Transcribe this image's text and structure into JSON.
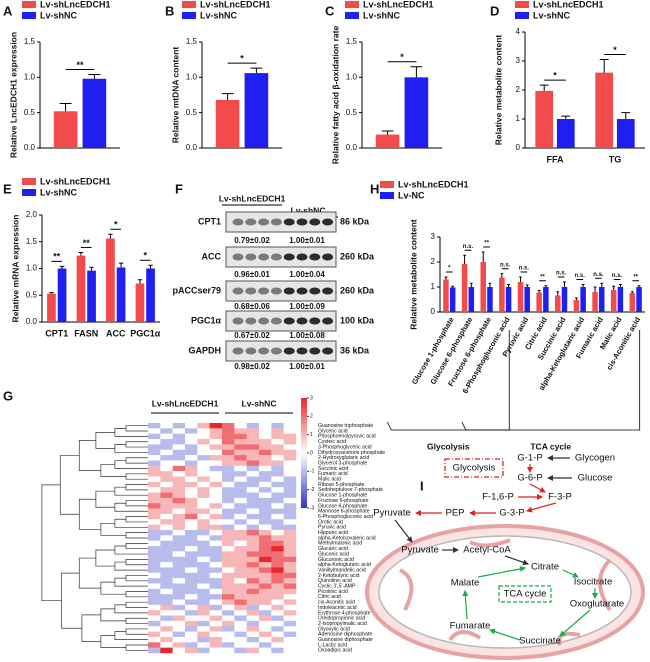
{
  "chart_data": [
    {
      "type": "bar",
      "panel": "A",
      "ylabel": "Relative LncEDCH1 expression",
      "series": [
        {
          "name": "Lv-shLncEDCH1",
          "color": "#f24b4b",
          "values": [
            0.52
          ],
          "errors": [
            0.11
          ]
        },
        {
          "name": "Lv-shNC",
          "color": "#1f1ff0",
          "values": [
            0.98
          ],
          "errors": [
            0.06
          ]
        }
      ],
      "annotations": [
        "**"
      ],
      "ylim": [
        0,
        1.5
      ],
      "yticks": [
        {
          "value": 0,
          "label": "0.0"
        },
        0.5,
        {
          "value": 1,
          "label": "1.0"
        },
        1.5
      ]
    },
    {
      "type": "bar",
      "panel": "B",
      "ylabel": "Relative mtDNA content",
      "series": [
        {
          "name": "Lv-shLncEDCH1",
          "color": "#f24b4b",
          "values": [
            0.68
          ],
          "errors": [
            0.09
          ]
        },
        {
          "name": "Lv-shNC",
          "color": "#1f1ff0",
          "values": [
            1.06
          ],
          "errors": [
            0.07
          ]
        }
      ],
      "annotations": [
        "*"
      ],
      "ylim": [
        0,
        1.5
      ],
      "yticks": [
        {
          "value": 0,
          "label": "0.0"
        },
        0.5,
        {
          "value": 1,
          "label": "1.0"
        },
        1.5
      ]
    },
    {
      "type": "bar",
      "panel": "C",
      "ylabel": "Relative fatty acid β-oxidation rate",
      "series": [
        {
          "name": "Lv-shLncEDCH1",
          "color": "#f24b4b",
          "values": [
            0.19
          ],
          "errors": [
            0.05
          ]
        },
        {
          "name": "Lv-shNC",
          "color": "#1f1ff0",
          "values": [
            1.0
          ],
          "errors": [
            0.15
          ]
        }
      ],
      "annotations": [
        "*"
      ],
      "ylim": [
        0,
        1.5
      ],
      "yticks": [
        {
          "value": 0,
          "label": "0.0"
        },
        0.5,
        {
          "value": 1,
          "label": "1.0"
        },
        1.5
      ]
    },
    {
      "type": "bar",
      "panel": "D",
      "ylabel": "Relative metabolite content",
      "categories": [
        "FFA",
        "TG"
      ],
      "series": [
        {
          "name": "Lv-shLncEDCH1",
          "color": "#f24b4b",
          "values": [
            1.97,
            2.6
          ],
          "errors": [
            0.2,
            0.45
          ]
        },
        {
          "name": "Lv-shNC",
          "color": "#1f1ff0",
          "values": [
            1.0,
            1.0
          ],
          "errors": [
            0.1,
            0.22
          ]
        }
      ],
      "annotations": [
        "*",
        "*"
      ],
      "ylim": [
        0,
        4
      ],
      "yticks": [
        0,
        1,
        2,
        3,
        4
      ]
    },
    {
      "type": "bar",
      "panel": "E",
      "ylabel": "Relative mRNA expression",
      "categories": [
        "CPT1",
        "FASN",
        "ACC",
        "PGC1α"
      ],
      "series": [
        {
          "name": "Lv-shLncEDCH1",
          "color": "#f24b4b",
          "values": [
            0.53,
            1.24,
            1.56,
            0.72
          ],
          "errors": [
            0.02,
            0.06,
            0.08,
            0.07
          ]
        },
        {
          "name": "Lv-shNC",
          "color": "#1f1ff0",
          "values": [
            1.0,
            0.96,
            1.02,
            1.0
          ],
          "errors": [
            0.04,
            0.06,
            0.08,
            0.06
          ]
        }
      ],
      "annotations": [
        "**",
        "**",
        "*",
        "*"
      ],
      "ylim": [
        0,
        2
      ],
      "yticks": [
        {
          "value": 0,
          "label": "0.0"
        },
        0.5,
        {
          "value": 1,
          "label": "1.0"
        },
        1.5,
        {
          "value": 2,
          "label": "2.0"
        }
      ]
    },
    {
      "type": "bar",
      "panel": "H",
      "ylabel": "Relative metabolite content",
      "categories": [
        "Glucose 1-phosphate",
        "Glucose 6-phosphate",
        "Fructose 6-phosphate",
        "6-Phosphogluconic acid",
        "Pyruvic acid",
        "Citric acid",
        "Succinic acid",
        "alpha-Ketoglutaric acid",
        "Fumaric acid",
        "Malic acid",
        "cis-Aconitic acid"
      ],
      "series": [
        {
          "name": "Lv-shLncEDCH1",
          "color": "#f24b4b",
          "values": [
            1.3,
            1.92,
            2.0,
            1.38,
            1.2,
            0.78,
            0.66,
            0.48,
            0.8,
            0.88,
            0.76
          ],
          "errors": [
            0.1,
            0.35,
            0.4,
            0.15,
            0.2,
            0.08,
            0.15,
            0.08,
            0.2,
            0.15,
            0.05
          ]
        },
        {
          "name": "Lv-NC",
          "color": "#1f1ff0",
          "values": [
            0.98,
            1.0,
            1.0,
            1.0,
            1.0,
            1.0,
            1.0,
            1.0,
            1.0,
            1.0,
            1.0
          ],
          "errors": [
            0.05,
            0.15,
            0.15,
            0.1,
            0.08,
            0.05,
            0.2,
            0.1,
            0.15,
            0.1,
            0.05
          ]
        }
      ],
      "annotations": [
        "*",
        "n.s.",
        "**",
        "n.s.",
        "n.s.",
        "**",
        "n.s.",
        "n.s.",
        "n.s.",
        "n.s.",
        "**"
      ],
      "groups": [
        {
          "label": "Glycolysis",
          "color": "#e02020"
        },
        {
          "label": "TCA cycle",
          "color": "#1aa84a"
        }
      ],
      "ylim": [
        0,
        3
      ],
      "yticks": [
        0,
        1,
        2,
        3
      ]
    }
  ],
  "blot": {
    "panel": "F",
    "lanes": [
      "Lv-shLncEDCH1",
      "Lv-shNC"
    ],
    "rows": [
      {
        "protein": "CPT1",
        "size": "86 kDa",
        "quant": [
          "0.79±0.02",
          "1.00±0.01"
        ]
      },
      {
        "protein": "ACC",
        "size": "260 kDa",
        "quant": [
          "0.96±0.01",
          "1.00±0.04"
        ]
      },
      {
        "protein": "pACCser79",
        "size": "260 kDa",
        "quant": [
          "0.68±0.06",
          "1.00±0.09"
        ]
      },
      {
        "protein": "PGC1α",
        "size": "100 kDa",
        "quant": [
          "0.67±0.02",
          "1.00±0.08"
        ]
      },
      {
        "protein": "GAPDH",
        "size": "36 kDa",
        "quant": [
          "0.98±0.02",
          "1.00±0.01"
        ]
      }
    ]
  },
  "heatmap": {
    "panel": "G",
    "groups": [
      "Lv-shLncEDCH1",
      "Lv-shNC"
    ],
    "clim": [
      -3,
      3
    ],
    "colorbar_ticks": [
      3,
      2,
      1,
      0,
      -1,
      -2,
      -3
    ],
    "rows": [
      "Guanosine triphosphate",
      "Glyceric acid",
      "Phosphoenolpyruvic acid",
      "Cysteic acid",
      "3-Phosphoglyceric acid",
      "Dihydroxyacetone phosphate",
      "2-Hydroxyglutaric acid",
      "Glycerol 3-phosphate",
      "Succinic acid",
      "Fumaric acid",
      "Malic acid",
      "Ribose 5-phosphate",
      "Sedoheptulose 7-phosphate",
      "Glucose 1-phosphate",
      "Fructose 6-phosphate",
      "Glucose 6-phosphate",
      "Mannose 6-phosphate",
      "6-Phosphogluconic acid",
      "Orotic acid",
      "Pyruvic acid",
      "Hippuric acid",
      "alpha-Ketoisovaleric acid",
      "Methylmalonic acid",
      "Glucaric acid",
      "Gluconic acid",
      "Glucuronic acid",
      "alpha-Ketoglutaric acid",
      "Vanillylmandelic acid",
      "2-Ketobutyric acid",
      "Quinolinic acid",
      "Cyclic 3',5'-AMP",
      "Picolinic acid",
      "Citric acid",
      "cis-Aconitic acid",
      "Indoleacetic acid",
      "Erythrose 4-phosphate",
      "Ureidopropionic acid",
      "2-Isopropylmalic acid",
      "Glyoxylic acid",
      "Adenosine diphosphate",
      "Guanosine diphosphate",
      "L-Lactic acid",
      "Oxoadipic acid"
    ],
    "values": [
      [
        -1,
        0,
        -1,
        0,
        1,
        3,
        2,
        0,
        -1,
        0,
        -1,
        0
      ],
      [
        0,
        -1,
        0,
        -1,
        0,
        1,
        2,
        1,
        1,
        0,
        1,
        0
      ],
      [
        -1,
        0,
        -1,
        0,
        0,
        1,
        2,
        2,
        1,
        0,
        1,
        1
      ],
      [
        0,
        -1,
        -1,
        0,
        1,
        0,
        2,
        1,
        1,
        1,
        0,
        1
      ],
      [
        -1,
        -1,
        0,
        -1,
        0,
        1,
        1,
        2,
        2,
        1,
        1,
        0
      ],
      [
        -1,
        0,
        -1,
        -1,
        0,
        0,
        2,
        1,
        1,
        2,
        1,
        1
      ],
      [
        0,
        -1,
        -1,
        0,
        -1,
        1,
        1,
        2,
        1,
        1,
        0,
        1
      ],
      [
        -1,
        0,
        0,
        -1,
        0,
        0,
        1,
        1,
        2,
        1,
        1,
        0
      ],
      [
        1,
        0,
        2,
        1,
        0,
        -1,
        -1,
        0,
        -1,
        0,
        -1,
        0
      ],
      [
        1,
        1,
        0,
        1,
        0,
        0,
        -1,
        -1,
        0,
        -1,
        -1,
        0
      ],
      [
        0,
        1,
        1,
        0,
        1,
        0,
        -1,
        0,
        -1,
        -1,
        0,
        -1
      ],
      [
        1,
        0,
        1,
        1,
        0,
        1,
        0,
        -1,
        -1,
        0,
        -1,
        -1
      ],
      [
        0,
        1,
        1,
        0,
        1,
        0,
        -1,
        -1,
        0,
        -1,
        0,
        -1
      ],
      [
        1,
        2,
        1,
        0,
        1,
        0,
        -1,
        -1,
        -1,
        0,
        -1,
        -1
      ],
      [
        1,
        1,
        2,
        1,
        0,
        0,
        -1,
        0,
        -1,
        -1,
        -1,
        0
      ],
      [
        2,
        1,
        1,
        1,
        0,
        1,
        0,
        -1,
        -1,
        -1,
        0,
        -1
      ],
      [
        1,
        1,
        0,
        1,
        1,
        0,
        -1,
        -1,
        0,
        -1,
        -1,
        -1
      ],
      [
        1,
        0,
        1,
        2,
        0,
        1,
        -1,
        0,
        -1,
        -1,
        0,
        -1
      ],
      [
        0,
        1,
        1,
        0,
        1,
        0,
        0,
        -1,
        0,
        -1,
        -1,
        0
      ],
      [
        1,
        0,
        1,
        0,
        1,
        1,
        -1,
        0,
        -1,
        0,
        -1,
        -1
      ],
      [
        -1,
        -1,
        0,
        -1,
        -1,
        0,
        1,
        1,
        2,
        1,
        0,
        1
      ],
      [
        -1,
        0,
        -1,
        -1,
        0,
        -1,
        1,
        1,
        1,
        2,
        1,
        1
      ],
      [
        0,
        -1,
        -1,
        -1,
        -1,
        0,
        1,
        0,
        1,
        2,
        2,
        1
      ],
      [
        -1,
        -1,
        -1,
        0,
        -1,
        -1,
        0,
        1,
        1,
        2,
        3,
        1
      ],
      [
        -1,
        -1,
        0,
        -1,
        -1,
        -1,
        1,
        1,
        2,
        2,
        2,
        1
      ],
      [
        -1,
        -1,
        -1,
        -1,
        0,
        -1,
        1,
        1,
        1,
        3,
        2,
        2
      ],
      [
        -1,
        0,
        -1,
        -1,
        -1,
        0,
        1,
        1,
        2,
        1,
        2,
        1
      ],
      [
        -1,
        -1,
        -1,
        0,
        -1,
        -1,
        0,
        1,
        1,
        2,
        3,
        1
      ],
      [
        0,
        -1,
        -1,
        -1,
        -1,
        0,
        1,
        1,
        1,
        1,
        2,
        2
      ],
      [
        -1,
        -1,
        0,
        -1,
        -1,
        -1,
        1,
        0,
        2,
        1,
        2,
        1
      ],
      [
        0,
        -1,
        -1,
        -1,
        0,
        -1,
        1,
        1,
        1,
        2,
        1,
        2
      ],
      [
        -1,
        0,
        -1,
        -1,
        -1,
        0,
        1,
        1,
        2,
        1,
        1,
        1
      ],
      [
        -1,
        -1,
        -1,
        0,
        -1,
        -1,
        2,
        1,
        1,
        1,
        1,
        0
      ],
      [
        -1,
        -1,
        0,
        -1,
        -1,
        0,
        1,
        2,
        1,
        1,
        0,
        1
      ],
      [
        0,
        1,
        -1,
        0,
        1,
        -1,
        0,
        1,
        -1,
        0,
        1,
        0
      ],
      [
        1,
        0,
        0,
        -1,
        1,
        0,
        -1,
        0,
        1,
        -1,
        0,
        1
      ],
      [
        0,
        -1,
        1,
        0,
        0,
        1,
        0,
        -1,
        0,
        1,
        -1,
        0
      ],
      [
        -1,
        0,
        0,
        1,
        -1,
        0,
        1,
        0,
        -1,
        0,
        0,
        -1
      ],
      [
        0,
        1,
        0,
        -1,
        0,
        1,
        -1,
        0,
        1,
        0,
        -1,
        0
      ],
      [
        1,
        0,
        -1,
        0,
        1,
        0,
        0,
        -1,
        0,
        1,
        0,
        -1
      ],
      [
        0,
        1,
        0,
        0,
        -1,
        1,
        0,
        0,
        -1,
        0,
        1,
        0
      ],
      [
        2,
        0,
        1,
        -1,
        0,
        1,
        -1,
        0,
        0,
        -1,
        0,
        0
      ],
      [
        -1,
        3,
        0,
        1,
        -1,
        0,
        0,
        -1,
        1,
        0,
        -1,
        0
      ]
    ]
  },
  "pathway": {
    "panel": "I",
    "nodes": [
      {
        "label": "Glycolysis",
        "color": "#222222"
      },
      {
        "label": "G-1-P",
        "color": "#e02020"
      },
      {
        "label": "Glycogen",
        "color": "#9a9a9a"
      },
      {
        "label": "G-6-P",
        "color": "#e02020"
      },
      {
        "label": "Glucose",
        "color": "#9a9a9a"
      },
      {
        "label": "F-1,6-P",
        "color": "#e02020"
      },
      {
        "label": "F-3-P",
        "color": "#e02020"
      },
      {
        "label": "PEP",
        "color": "#e02020"
      },
      {
        "label": "G-3-P",
        "color": "#e02020"
      },
      {
        "label": "Pyruvate",
        "color": "#e02020"
      },
      {
        "label": "Pyruvate",
        "color": "#e02020"
      },
      {
        "label": "Acetyl-CoA",
        "color": "#9a9a9a"
      },
      {
        "label": "Citrate",
        "color": "#1aa84a"
      },
      {
        "label": "Isocitrate",
        "color": "#9a9a9a"
      },
      {
        "label": "TCA cycle",
        "color": "#222222"
      },
      {
        "label": "Oxoglutarate",
        "color": "#9a9a9a"
      },
      {
        "label": "Malate",
        "color": "#1aa84a"
      },
      {
        "label": "Fumarate",
        "color": "#1aa84a"
      },
      {
        "label": "Succinate",
        "color": "#1aa84a"
      }
    ]
  }
}
